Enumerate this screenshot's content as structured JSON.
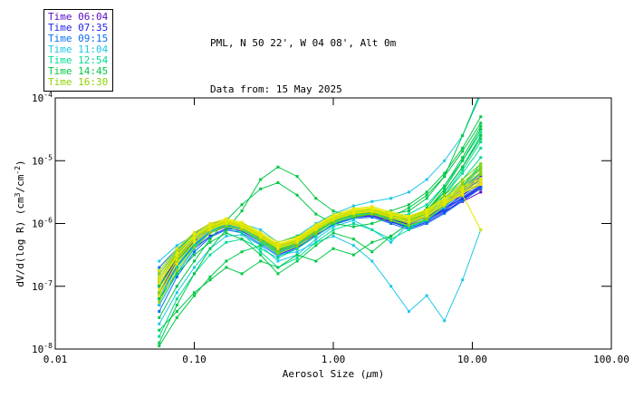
{
  "header": {
    "title_line1": "PML, N 50 22', W 04 08', Alt 0m",
    "title_line2": "Data from: 15 May 2025"
  },
  "legend": {
    "items": [
      {
        "label": "Time 06:04",
        "color": "#5A0AC8"
      },
      {
        "label": "Time 07:35",
        "color": "#2222EE"
      },
      {
        "label": "Time 09:15",
        "color": "#0A6EF0"
      },
      {
        "label": "Time 11:04",
        "color": "#1EC8E6"
      },
      {
        "label": "Time 12:54",
        "color": "#00DC96"
      },
      {
        "label": "Time 14:45",
        "color": "#00C846"
      },
      {
        "label": "Time 16:30",
        "color": "#8CD200"
      }
    ]
  },
  "chart_data": {
    "type": "line",
    "title": "PML, N 50 22', W 04 08', Alt 0m",
    "subtitle": "Data from: 15 May 2025",
    "xlabel_parts": [
      {
        "t": "Aerosol Size ("
      },
      {
        "t": "μ",
        "italic": true
      },
      {
        "t": "m)"
      }
    ],
    "ylabel_parts": [
      {
        "t": "dV/d(log R) (cm"
      },
      {
        "t": "3",
        "sup": true
      },
      {
        "t": "/cm"
      },
      {
        "t": "-2",
        "sup": true
      },
      {
        "t": ")"
      }
    ],
    "x_scale": "log",
    "y_scale": "log",
    "xlim_log": [
      -2,
      2
    ],
    "ylim_log": [
      -8,
      -4
    ],
    "x_ticks": [
      {
        "label": "0.01",
        "log": -2
      },
      {
        "label": "0.10",
        "log": -1
      },
      {
        "label": "1.00",
        "log": 0
      },
      {
        "label": "10.00",
        "log": 1
      },
      {
        "label": "100.00",
        "log": 2
      }
    ],
    "y_ticks": [
      {
        "base": "10",
        "exp": "-4",
        "log": -4
      },
      {
        "base": "10",
        "exp": "-5",
        "log": -5
      },
      {
        "base": "10",
        "exp": "-6",
        "log": -6
      },
      {
        "base": "10",
        "exp": "-7",
        "log": -7
      },
      {
        "base": "10",
        "exp": "-8",
        "log": -8
      }
    ],
    "grid": false,
    "legend_position": "top-left",
    "x_um": [
      0.056,
      0.075,
      0.1,
      0.13,
      0.17,
      0.22,
      0.3,
      0.4,
      0.55,
      0.75,
      1.0,
      1.4,
      1.9,
      2.6,
      3.5,
      4.7,
      6.3,
      8.5,
      11.5
    ],
    "series": [
      {
        "time": "06:04",
        "color": "#5A0AC8",
        "logv": [
          -7.0,
          -6.55,
          -6.25,
          -6.1,
          -6.02,
          -6.05,
          -6.2,
          -6.38,
          -6.3,
          -6.12,
          -5.98,
          -5.88,
          -5.85,
          -5.95,
          -6.0,
          -5.9,
          -5.75,
          -5.6,
          -5.45
        ]
      },
      {
        "time": "06:04",
        "color": "#5A0AC8",
        "logv": [
          -7.2,
          -6.7,
          -6.35,
          -6.15,
          -6.05,
          -6.1,
          -6.28,
          -6.45,
          -6.35,
          -6.18,
          -6.02,
          -5.9,
          -5.88,
          -5.98,
          -6.05,
          -5.95,
          -5.8,
          -5.65,
          -5.5
        ]
      },
      {
        "time": "06:04",
        "color": "#5A0AC8",
        "logv": [
          -6.8,
          -6.45,
          -6.2,
          -6.05,
          -6.0,
          -6.08,
          -6.22,
          -6.35,
          -6.28,
          -6.1,
          -5.95,
          -5.85,
          -5.83,
          -5.9,
          -5.97,
          -5.88,
          -5.7,
          -5.55,
          -5.35
        ]
      },
      {
        "time": "07:35",
        "color": "#2222EE",
        "logv": [
          -7.1,
          -6.6,
          -6.3,
          -6.1,
          -6.0,
          -6.03,
          -6.18,
          -6.4,
          -6.33,
          -6.15,
          -5.97,
          -5.86,
          -5.84,
          -5.93,
          -6.02,
          -5.93,
          -5.78,
          -5.6,
          -5.4
        ]
      },
      {
        "time": "07:35",
        "color": "#2222EE",
        "logv": [
          -6.9,
          -6.5,
          -6.22,
          -6.07,
          -5.98,
          -6.06,
          -6.25,
          -6.42,
          -6.3,
          -6.1,
          -5.94,
          -5.83,
          -5.8,
          -5.92,
          -6.0,
          -5.9,
          -5.72,
          -5.5,
          -5.3
        ]
      },
      {
        "time": "07:35",
        "color": "#2222EE",
        "logv": [
          -7.3,
          -6.8,
          -6.4,
          -6.2,
          -6.08,
          -6.12,
          -6.3,
          -6.5,
          -6.38,
          -6.2,
          -6.0,
          -5.9,
          -5.87,
          -5.97,
          -6.08,
          -5.98,
          -5.82,
          -5.62,
          -5.42
        ]
      },
      {
        "time": "07:35",
        "color": "#2222EE",
        "logv": [
          -6.75,
          -6.42,
          -6.18,
          -6.03,
          -5.97,
          -6.04,
          -6.2,
          -6.36,
          -6.27,
          -6.08,
          -5.92,
          -5.82,
          -5.8,
          -5.9,
          -5.96,
          -5.85,
          -5.68,
          -5.48,
          -5.25
        ]
      },
      {
        "time": "07:35",
        "color": "#2222EE",
        "logv": [
          -7.0,
          -6.58,
          -6.28,
          -6.12,
          -6.03,
          -6.08,
          -6.24,
          -6.44,
          -6.34,
          -6.14,
          -5.96,
          -5.85,
          -5.82,
          -5.94,
          -6.04,
          -5.94,
          -5.76,
          -5.55,
          -5.35
        ]
      },
      {
        "time": "09:15",
        "color": "#0A6EF0",
        "logv": [
          -6.85,
          -6.48,
          -6.2,
          -6.05,
          -5.98,
          -6.05,
          -6.22,
          -6.4,
          -6.3,
          -6.1,
          -5.93,
          -5.83,
          -5.8,
          -5.9,
          -5.98,
          -5.88,
          -5.7,
          -5.5,
          -5.28
        ]
      },
      {
        "time": "09:15",
        "color": "#0A6EF0",
        "logv": [
          -7.15,
          -6.68,
          -6.34,
          -6.14,
          -6.04,
          -6.1,
          -6.28,
          -6.48,
          -6.36,
          -6.16,
          -5.98,
          -5.87,
          -5.85,
          -5.96,
          -6.06,
          -5.96,
          -5.78,
          -5.58,
          -5.38
        ]
      },
      {
        "time": "09:15",
        "color": "#0A6EF0",
        "logv": [
          -6.95,
          -6.55,
          -6.26,
          -6.09,
          -6.0,
          -6.07,
          -6.24,
          -6.43,
          -6.32,
          -6.12,
          -5.95,
          -5.84,
          -5.82,
          -5.92,
          -6.0,
          -5.9,
          -5.73,
          -5.52,
          -5.3
        ]
      },
      {
        "time": "09:15",
        "color": "#0A6EF0",
        "logv": [
          -7.4,
          -6.85,
          -6.45,
          -6.22,
          -6.1,
          -6.15,
          -6.33,
          -6.52,
          -6.4,
          -6.2,
          -6.02,
          -5.92,
          -5.9,
          -6.0,
          -6.1,
          -6.0,
          -5.84,
          -5.64,
          -5.44
        ]
      },
      {
        "time": "09:15",
        "color": "#0A6EF0",
        "logv": [
          -6.7,
          -6.4,
          -6.15,
          -6.0,
          -5.95,
          -6.02,
          -6.18,
          -6.34,
          -6.25,
          -6.06,
          -5.9,
          -5.8,
          -5.78,
          -5.88,
          -5.94,
          -5.83,
          -5.65,
          -5.45,
          -5.2
        ]
      },
      {
        "time": "11:04",
        "color": "#1EC8E6",
        "logv": [
          -6.8,
          -6.45,
          -6.2,
          -6.05,
          -5.97,
          -6.03,
          -6.2,
          -6.38,
          -6.28,
          -6.08,
          -5.92,
          -5.82,
          -5.8,
          -5.9,
          -5.96,
          -5.86,
          -5.66,
          -5.4,
          -5.1
        ]
      },
      {
        "time": "11:04",
        "color": "#1EC8E6",
        "logv": [
          -7.1,
          -6.65,
          -6.32,
          -6.12,
          -6.02,
          -6.08,
          -6.26,
          -6.46,
          -6.34,
          -6.14,
          -5.96,
          -5.86,
          -5.84,
          -5.94,
          -6.04,
          -5.94,
          -5.74,
          -5.5,
          -5.2
        ]
      },
      {
        "time": "11:04",
        "color": "#1EC8E6",
        "logv": [
          -6.6,
          -6.35,
          -6.18,
          -6.08,
          -6.02,
          -6.1,
          -6.3,
          -6.5,
          -6.45,
          -6.3,
          -6.2,
          -6.35,
          -6.6,
          -7.0,
          -7.4,
          -7.15,
          -7.55,
          -6.9,
          -6.1
        ]
      },
      {
        "time": "11:04",
        "color": "#1EC8E6",
        "logv": [
          -7.3,
          -6.8,
          -6.4,
          -6.15,
          -6.0,
          -6.0,
          -6.1,
          -6.3,
          -6.2,
          -6.0,
          -5.85,
          -5.72,
          -5.65,
          -5.6,
          -5.5,
          -5.3,
          -5.0,
          -4.6,
          -3.95
        ]
      },
      {
        "time": "11:04",
        "color": "#1EC8E6",
        "logv": [
          -6.95,
          -6.52,
          -6.24,
          -6.08,
          -6.0,
          -6.06,
          -6.23,
          -6.42,
          -6.3,
          -6.1,
          -5.94,
          -5.84,
          -5.81,
          -5.91,
          -5.98,
          -5.88,
          -5.68,
          -5.42,
          -5.12
        ]
      },
      {
        "time": "11:04",
        "color": "#1EC8E6",
        "logv": [
          -7.6,
          -7.1,
          -6.7,
          -6.4,
          -6.2,
          -6.18,
          -6.35,
          -6.6,
          -6.5,
          -6.25,
          -6.05,
          -5.95,
          -6.1,
          -6.3,
          -6.0,
          -5.8,
          -5.5,
          -5.1,
          -4.6
        ]
      },
      {
        "time": "12:54",
        "color": "#00DC96",
        "logv": [
          -6.9,
          -6.5,
          -6.22,
          -6.06,
          -5.98,
          -6.04,
          -6.2,
          -6.4,
          -6.28,
          -6.08,
          -5.92,
          -5.82,
          -5.79,
          -5.89,
          -5.95,
          -5.84,
          -5.6,
          -5.3,
          -4.95
        ]
      },
      {
        "time": "12:54",
        "color": "#00DC96",
        "logv": [
          -7.2,
          -6.7,
          -6.36,
          -6.15,
          -6.04,
          -6.1,
          -6.27,
          -6.47,
          -6.35,
          -6.15,
          -5.97,
          -5.87,
          -5.84,
          -5.95,
          -6.05,
          -5.95,
          -5.7,
          -5.4,
          -5.05
        ]
      },
      {
        "time": "12:54",
        "color": "#00DC96",
        "logv": [
          -7.8,
          -7.2,
          -6.8,
          -6.5,
          -6.3,
          -6.25,
          -6.4,
          -6.55,
          -6.4,
          -6.2,
          -6.0,
          -5.9,
          -5.85,
          -5.9,
          -5.85,
          -5.7,
          -5.4,
          -5.0,
          -4.55
        ]
      },
      {
        "time": "12:54",
        "color": "#00DC96",
        "logv": [
          -6.75,
          -6.42,
          -6.17,
          -6.02,
          -5.96,
          -6.02,
          -6.18,
          -6.36,
          -6.26,
          -6.06,
          -5.9,
          -5.8,
          -5.78,
          -5.87,
          -5.93,
          -5.8,
          -5.55,
          -5.2,
          -4.8
        ]
      },
      {
        "time": "12:54",
        "color": "#00DC96",
        "logv": [
          -7.0,
          -6.6,
          -6.3,
          -6.1,
          -6.05,
          -6.15,
          -6.45,
          -6.7,
          -6.55,
          -6.3,
          -6.1,
          -6.0,
          -6.1,
          -6.25,
          -6.1,
          -5.9,
          -5.55,
          -5.15,
          -4.7
        ]
      },
      {
        "time": "14:45",
        "color": "#00C846",
        "logv": [
          -7.9,
          -7.3,
          -6.8,
          -6.4,
          -6.1,
          -5.8,
          -5.3,
          -5.1,
          -5.25,
          -5.6,
          -5.8,
          -5.9,
          -5.85,
          -5.8,
          -5.7,
          -5.5,
          -5.2,
          -4.8,
          -4.3
        ]
      },
      {
        "time": "14:45",
        "color": "#00C846",
        "logv": [
          -7.5,
          -7.0,
          -6.6,
          -6.25,
          -5.95,
          -5.7,
          -5.45,
          -5.35,
          -5.55,
          -5.85,
          -6.0,
          -6.05,
          -6.0,
          -5.9,
          -5.75,
          -5.55,
          -5.25,
          -4.85,
          -4.4
        ]
      },
      {
        "time": "14:45",
        "color": "#00C846",
        "logv": [
          -7.7,
          -7.4,
          -7.1,
          -6.9,
          -6.7,
          -6.8,
          -6.6,
          -6.7,
          -6.5,
          -6.6,
          -6.4,
          -6.5,
          -6.3,
          -6.2,
          -6.0,
          -5.8,
          -5.5,
          -5.1,
          -4.65
        ]
      },
      {
        "time": "14:45",
        "color": "#00C846",
        "logv": [
          -6.85,
          -6.48,
          -6.22,
          -6.06,
          -5.98,
          -6.05,
          -6.22,
          -6.4,
          -6.3,
          -6.1,
          -5.93,
          -5.83,
          -5.8,
          -5.88,
          -5.92,
          -5.78,
          -5.5,
          -5.1,
          -4.6
        ]
      },
      {
        "time": "14:45",
        "color": "#00C846",
        "logv": [
          -7.95,
          -7.5,
          -7.15,
          -6.85,
          -6.6,
          -6.45,
          -6.35,
          -6.3,
          -6.2,
          -6.1,
          -5.95,
          -5.85,
          -5.8,
          -5.85,
          -5.8,
          -5.6,
          -5.25,
          -4.6,
          -3.9
        ]
      },
      {
        "time": "14:45",
        "color": "#00C846",
        "logv": [
          -7.2,
          -6.8,
          -6.5,
          -6.3,
          -6.15,
          -6.25,
          -6.5,
          -6.8,
          -6.6,
          -6.35,
          -6.15,
          -6.25,
          -6.45,
          -6.2,
          -6.0,
          -5.75,
          -5.4,
          -4.95,
          -4.45
        ]
      },
      {
        "time": "14:45",
        "color": "#00C846",
        "logv": [
          -7.0,
          -6.6,
          -6.3,
          -6.1,
          -6.0,
          -6.06,
          -6.24,
          -6.42,
          -6.32,
          -6.12,
          -5.95,
          -5.85,
          -5.82,
          -5.9,
          -5.95,
          -5.8,
          -5.45,
          -5.0,
          -4.5
        ]
      },
      {
        "time": "16:30",
        "color": "#8CD200",
        "logv": [
          -6.9,
          -6.5,
          -6.22,
          -6.06,
          -5.97,
          -6.03,
          -6.2,
          -6.38,
          -6.28,
          -6.08,
          -5.92,
          -5.82,
          -5.79,
          -5.88,
          -5.93,
          -5.82,
          -5.6,
          -5.35,
          -5.1
        ]
      },
      {
        "time": "16:30",
        "color": "#8CD200",
        "logv": [
          -7.1,
          -6.65,
          -6.3,
          -6.1,
          -6.0,
          -6.07,
          -6.24,
          -6.44,
          -6.32,
          -6.12,
          -5.95,
          -5.85,
          -5.82,
          -5.92,
          -6.0,
          -5.9,
          -5.68,
          -5.42,
          -5.18
        ]
      },
      {
        "time": "16:30",
        "color": "#8CD200",
        "logv": [
          -6.8,
          -6.45,
          -6.18,
          -6.03,
          -5.95,
          -6.01,
          -6.18,
          -6.35,
          -6.26,
          -6.06,
          -5.9,
          -5.8,
          -5.77,
          -5.86,
          -5.9,
          -5.78,
          -5.55,
          -5.3,
          -5.05
        ]
      },
      {
        "time": "16:30",
        "color": "#8CD200",
        "logv": [
          -7.25,
          -6.75,
          -6.38,
          -6.15,
          -6.04,
          -6.1,
          -6.28,
          -6.48,
          -6.36,
          -6.16,
          -5.98,
          -5.88,
          -5.85,
          -5.95,
          -6.03,
          -5.93,
          -5.72,
          -5.46,
          -5.22
        ]
      },
      {
        "time": "16:30",
        "color": "#8CD200",
        "logv": [
          -6.95,
          -6.55,
          -6.25,
          -6.08,
          -5.99,
          -6.05,
          -6.22,
          -6.4,
          -6.3,
          -6.1,
          -5.93,
          -5.83,
          -5.8,
          -5.9,
          -5.96,
          -5.85,
          -5.63,
          -5.38,
          -5.14
        ]
      },
      {
        "time": "16:30",
        "color": "#E6E600",
        "logv": [
          -6.85,
          -6.46,
          -6.18,
          -6.02,
          -5.94,
          -6.0,
          -6.16,
          -6.33,
          -6.24,
          -6.04,
          -5.88,
          -5.78,
          -5.75,
          -5.84,
          -5.9,
          -5.8,
          -5.62,
          -5.45,
          -5.3
        ]
      },
      {
        "time": "16:30",
        "color": "#E6E600",
        "logv": [
          -6.95,
          -6.52,
          -6.22,
          -6.05,
          -5.96,
          -6.02,
          -6.18,
          -6.36,
          -6.26,
          -6.06,
          -5.9,
          -5.8,
          -5.77,
          -5.86,
          -5.93,
          -5.83,
          -5.65,
          -5.48,
          -5.33
        ]
      },
      {
        "time": "16:30",
        "color": "#E6E600",
        "logv": [
          -7.05,
          -6.58,
          -6.26,
          -6.08,
          -5.98,
          -6.04,
          -6.2,
          -6.38,
          -6.28,
          -6.08,
          -5.92,
          -5.82,
          -5.79,
          -5.88,
          -5.96,
          -5.86,
          -5.68,
          -5.5,
          -5.36
        ]
      },
      {
        "time": "16:30",
        "color": "#E6E600",
        "logv": [
          -6.75,
          -6.4,
          -6.14,
          -6.0,
          -5.92,
          -5.98,
          -6.14,
          -6.3,
          -6.22,
          -6.02,
          -5.86,
          -5.76,
          -5.73,
          -5.82,
          -5.88,
          -5.78,
          -5.6,
          -5.42,
          -5.28
        ]
      },
      {
        "time": "16:30",
        "color": "#E6E600",
        "logv": [
          -7.15,
          -6.64,
          -6.3,
          -6.1,
          -6.0,
          -6.06,
          -6.22,
          -6.4,
          -6.3,
          -6.1,
          -5.94,
          -5.84,
          -5.81,
          -5.9,
          -5.98,
          -5.88,
          -5.7,
          -5.52,
          -5.38
        ]
      },
      {
        "time": "16:30",
        "color": "#E6E600",
        "logv": [
          -6.9,
          -6.5,
          -6.2,
          -6.04,
          -5.95,
          -6.01,
          -6.17,
          -6.34,
          -6.25,
          -6.05,
          -5.89,
          -5.79,
          -5.76,
          -5.85,
          -5.92,
          -5.82,
          -5.66,
          -5.55,
          -6.1
        ]
      }
    ]
  }
}
